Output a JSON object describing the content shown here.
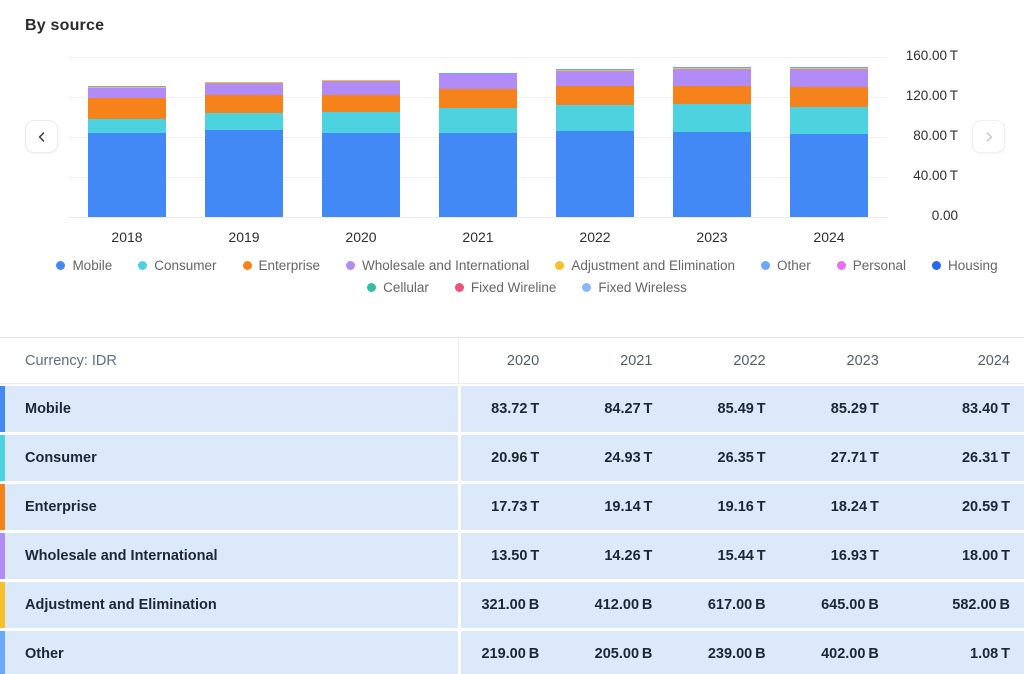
{
  "title": "By source",
  "chart_data": {
    "type": "bar",
    "stacked": true,
    "title": "By source",
    "unit": "IDR trillions",
    "categories": [
      "2018",
      "2019",
      "2020",
      "2021",
      "2022",
      "2023",
      "2024"
    ],
    "series": [
      {
        "name": "Mobile",
        "color": "#4289F5",
        "values": [
          84.5,
          86.5,
          83.72,
          84.27,
          85.49,
          85.29,
          83.4
        ]
      },
      {
        "name": "Consumer",
        "color": "#4DD2DF",
        "values": [
          14.0,
          17.5,
          20.96,
          24.93,
          26.35,
          27.71,
          26.31
        ]
      },
      {
        "name": "Enterprise",
        "color": "#F5821A",
        "values": [
          20.5,
          17.8,
          17.73,
          19.14,
          19.16,
          18.24,
          20.59
        ]
      },
      {
        "name": "Wholesale and International",
        "color": "#B18CF9",
        "values": [
          10.5,
          12.0,
          13.5,
          14.26,
          15.44,
          16.93,
          18.0
        ]
      },
      {
        "name": "Adjustment and Elimination",
        "color": "#F6C02C",
        "values": [
          0.3,
          0.4,
          0.32,
          0.41,
          0.62,
          0.65,
          0.58
        ]
      },
      {
        "name": "Other",
        "color": "#69A8FC",
        "values": [
          0.2,
          0.2,
          0.22,
          0.21,
          0.24,
          0.4,
          1.08
        ]
      }
    ],
    "ylim": [
      0,
      160
    ],
    "y_ticks": [
      "160.00 T",
      "120.00 T",
      "80.00 T",
      "40.00 T",
      "0.00"
    ],
    "grid": true,
    "legend_position": "bottom"
  },
  "chart_nav": {
    "prev_icon": "chevron-left",
    "next_icon": "chevron-right"
  },
  "legend": {
    "rows": [
      [
        {
          "label": "Mobile",
          "color": "#4289F5"
        },
        {
          "label": "Consumer",
          "color": "#4DD2DF"
        },
        {
          "label": "Enterprise",
          "color": "#F5821A"
        },
        {
          "label": "Wholesale and International",
          "color": "#B18CF9"
        },
        {
          "label": "Adjustment and Elimination",
          "color": "#F6C02C"
        },
        {
          "label": "Other",
          "color": "#69A8FC"
        },
        {
          "label": "Personal",
          "color": "#E76FF2"
        },
        {
          "label": "Housing",
          "color": "#2A66EC"
        }
      ],
      [
        {
          "label": "Cellular",
          "color": "#2EBFA5"
        },
        {
          "label": "Fixed Wireline",
          "color": "#EE527C"
        },
        {
          "label": "Fixed Wireless",
          "color": "#8AB6FA"
        }
      ]
    ]
  },
  "table": {
    "currency_label": "Currency: IDR",
    "years": [
      "2020",
      "2021",
      "2022",
      "2023",
      "2024"
    ],
    "rows": [
      {
        "label": "Mobile",
        "color": "#4289F5",
        "values": [
          "83.72 T",
          "84.27 T",
          "85.49 T",
          "85.29 T",
          "83.40 T"
        ]
      },
      {
        "label": "Consumer",
        "color": "#4DD2DF",
        "values": [
          "20.96 T",
          "24.93 T",
          "26.35 T",
          "27.71 T",
          "26.31 T"
        ]
      },
      {
        "label": "Enterprise",
        "color": "#F5821A",
        "values": [
          "17.73 T",
          "19.14 T",
          "19.16 T",
          "18.24 T",
          "20.59 T"
        ]
      },
      {
        "label": "Wholesale and International",
        "color": "#B18CF9",
        "values": [
          "13.50 T",
          "14.26 T",
          "15.44 T",
          "16.93 T",
          "18.00 T"
        ]
      },
      {
        "label": "Adjustment and Elimination",
        "color": "#F6C02C",
        "values": [
          "321.00 B",
          "412.00 B",
          "617.00 B",
          "645.00 B",
          "582.00 B"
        ]
      },
      {
        "label": "Other",
        "color": "#69A8FC",
        "values": [
          "219.00 B",
          "205.00 B",
          "239.00 B",
          "402.00 B",
          "1.08 T"
        ]
      }
    ]
  }
}
